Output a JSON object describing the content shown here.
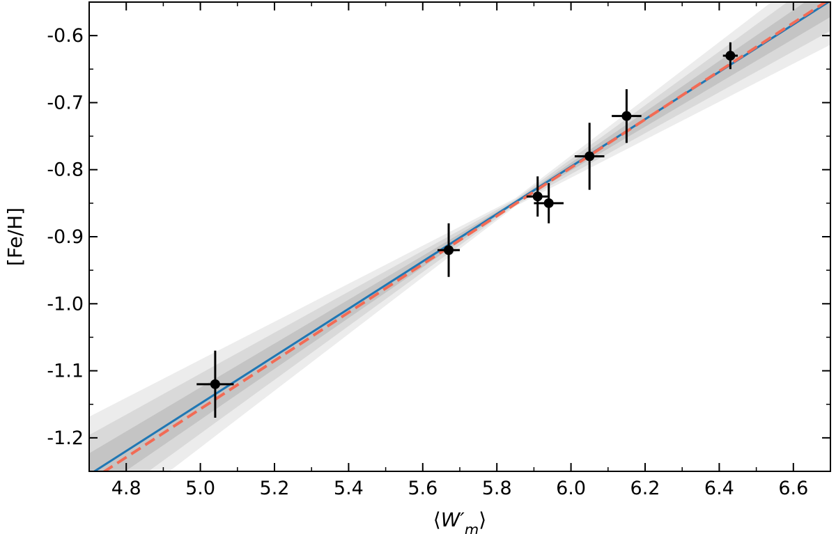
{
  "chart_data": {
    "type": "scatter",
    "title": "",
    "xlabel": "⟨W′m⟩",
    "ylabel": "[Fe/H]",
    "xlim": [
      4.7,
      6.7
    ],
    "ylim": [
      -1.25,
      -0.55
    ],
    "x_ticks": [
      4.8,
      5.0,
      5.2,
      5.4,
      5.6,
      5.8,
      6.0,
      6.2,
      6.4,
      6.6
    ],
    "x_tick_labels": [
      "4.8",
      "5.0",
      "5.2",
      "5.4",
      "5.6",
      "5.8",
      "6.0",
      "6.2",
      "6.4",
      "6.6"
    ],
    "y_ticks": [
      -1.2,
      -1.1,
      -1.0,
      -0.9,
      -0.8,
      -0.7,
      -0.6
    ],
    "y_tick_labels": [
      "-1.2",
      "-1.1",
      "-1.0",
      "-0.9",
      "-0.8",
      "-0.7",
      "-0.6"
    ],
    "grid": false,
    "points": [
      {
        "x": 5.04,
        "y": -1.12,
        "xerr": 0.05,
        "yerr": 0.05
      },
      {
        "x": 5.67,
        "y": -0.92,
        "xerr": 0.03,
        "yerr": 0.04
      },
      {
        "x": 5.91,
        "y": -0.84,
        "xerr": 0.03,
        "yerr": 0.03
      },
      {
        "x": 5.94,
        "y": -0.85,
        "xerr": 0.04,
        "yerr": 0.03
      },
      {
        "x": 6.05,
        "y": -0.78,
        "xerr": 0.04,
        "yerr": 0.05
      },
      {
        "x": 6.15,
        "y": -0.72,
        "xerr": 0.04,
        "yerr": 0.04
      },
      {
        "x": 6.43,
        "y": -0.63,
        "xerr": 0.02,
        "yerr": 0.02
      }
    ],
    "fit_lines": [
      {
        "style": "solid",
        "color": "#1f77b4",
        "x": [
          4.7,
          6.7
        ],
        "y": [
          -1.255,
          -0.548
        ]
      },
      {
        "style": "dashed",
        "color": "#f26b55",
        "x": [
          4.7,
          6.7
        ],
        "y": [
          -1.265,
          -0.545
        ]
      }
    ],
    "bands": [
      {
        "pivot": 5.85,
        "center_slope": 0.3535,
        "center_intercept": -2.9165,
        "half_width_at_pivot": 0.006,
        "half_width_growth": 0.07,
        "color": "#ececec"
      },
      {
        "pivot": 5.85,
        "center_slope": 0.3535,
        "center_intercept": -2.9165,
        "half_width_at_pivot": 0.004,
        "half_width_growth": 0.048,
        "color": "#d9d9d9"
      },
      {
        "pivot": 5.85,
        "center_slope": 0.3535,
        "center_intercept": -2.9165,
        "half_width_at_pivot": 0.002,
        "half_width_growth": 0.026,
        "color": "#c4c4c4"
      }
    ]
  }
}
